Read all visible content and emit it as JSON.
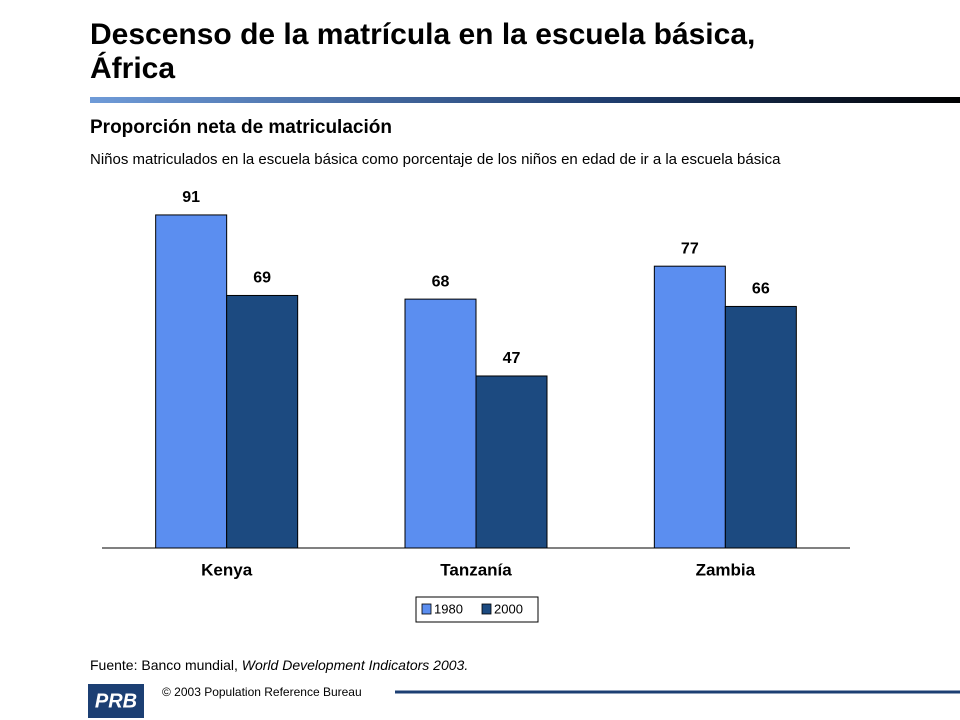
{
  "header": {
    "title_line1": "Descenso de la matrícula en la escuela básica,",
    "title_line2": "África"
  },
  "chart_data": {
    "type": "bar",
    "title": "Proporción neta de matriculación",
    "subtitle": "Niños matriculados en la escuela básica como porcentaje de los niños en edad de ir a la escuela básica",
    "categories": [
      "Kenya",
      "Tanzanía",
      "Zambia"
    ],
    "series": [
      {
        "name": "1980",
        "color": "#5b8ef0",
        "values": [
          91,
          68,
          77
        ]
      },
      {
        "name": "2000",
        "color": "#1c4a80",
        "values": [
          69,
          47,
          66
        ]
      }
    ],
    "legend": "bottom"
  },
  "footer": {
    "source": "Fuente: Banco mundial,",
    "source_title": "World Development Indicators 2003.",
    "copyright": "© 2003 Population Reference Bureau",
    "logo": "PRB"
  }
}
